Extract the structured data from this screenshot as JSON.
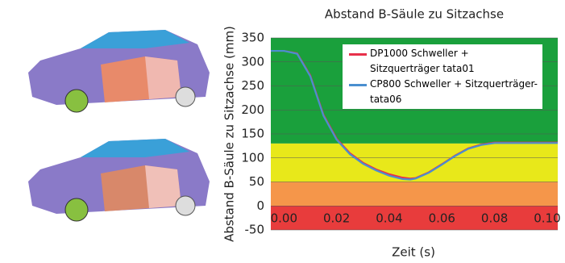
{
  "chart_data": {
    "type": "line",
    "title": "Abstand B-Säule zu Sitzachse",
    "x_label": "Zeit (s)",
    "y_label": "Abstand B-Säule zu Sitzachse (mm)",
    "xlim": [
      -0.005,
      0.104
    ],
    "ylim": [
      -50,
      350
    ],
    "xticks": [
      {
        "value": 0,
        "label": "0.00"
      },
      {
        "value": 0.02,
        "label": "0.02"
      },
      {
        "value": 0.04,
        "label": "0.04"
      },
      {
        "value": 0.06,
        "label": "0.06"
      },
      {
        "value": 0.08,
        "label": "0.08"
      },
      {
        "value": 0.1,
        "label": "0.10"
      }
    ],
    "yticks": [
      -50,
      0,
      50,
      100,
      150,
      200,
      250,
      300,
      350
    ],
    "grid": true,
    "bands": [
      {
        "from": 130,
        "to": 350,
        "color": "#1aa03c"
      },
      {
        "from": 50,
        "to": 130,
        "color": "#e8e81a"
      },
      {
        "from": 0,
        "to": 50,
        "color": "#f5964a"
      },
      {
        "from": -50,
        "to": 0,
        "color": "#e83c3c"
      }
    ],
    "x": [
      -0.005,
      0.0,
      0.005,
      0.01,
      0.015,
      0.02,
      0.025,
      0.03,
      0.035,
      0.04,
      0.045,
      0.048,
      0.05,
      0.055,
      0.06,
      0.065,
      0.07,
      0.075,
      0.08,
      0.085,
      0.09,
      0.1,
      0.104
    ],
    "series": [
      {
        "name": "DP1000 Schweller + Sitzquerträger tata01",
        "color": "#e8304a",
        "values": [
          323,
          323,
          318,
          272,
          190,
          140,
          110,
          90,
          76,
          66,
          59,
          57,
          58,
          70,
          87,
          105,
          120,
          128,
          132,
          132,
          132,
          132,
          132
        ]
      },
      {
        "name": "CP800 Schweller + Sitzquerträger-tata06",
        "color": "#4a8fd0",
        "values": [
          323,
          323,
          317,
          270,
          188,
          138,
          108,
          88,
          74,
          63,
          56,
          55,
          57,
          69,
          86,
          104,
          119,
          127,
          131,
          131,
          131,
          131,
          131
        ]
      }
    ],
    "legend": "upper right"
  }
}
